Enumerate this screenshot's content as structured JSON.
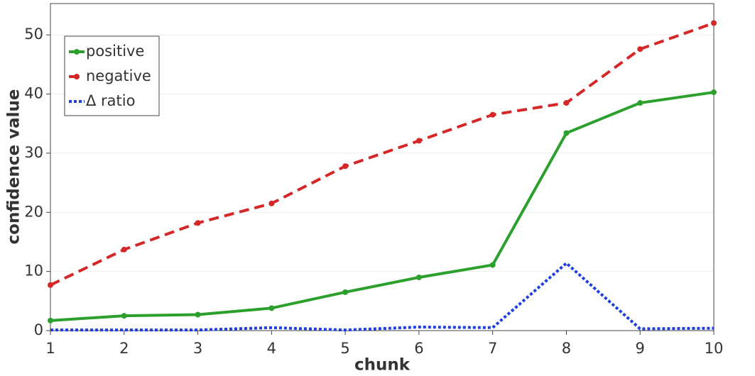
{
  "chart_data": {
    "type": "line",
    "x_label": "chunk",
    "y_label": "confidence value",
    "x": [
      1,
      2,
      3,
      4,
      5,
      6,
      7,
      8,
      9,
      10
    ],
    "xlim": [
      1,
      10
    ],
    "xticks": [
      1,
      2,
      3,
      4,
      5,
      6,
      7,
      8,
      9,
      10
    ],
    "ylim": [
      0,
      55.3
    ],
    "yticks": [
      0,
      10,
      20,
      30,
      40,
      50
    ],
    "grid": true,
    "legend": "upper-left",
    "series": [
      {
        "name": "positive",
        "color": "#2ca02c",
        "dash": "solid",
        "marker": true,
        "values": [
          1.7,
          2.5,
          2.7,
          3.8,
          6.5,
          9.0,
          11.1,
          33.4,
          38.5,
          40.3
        ]
      },
      {
        "name": "negative",
        "color": "#d62728",
        "dash": "dash",
        "marker": true,
        "values": [
          7.7,
          13.7,
          18.2,
          21.5,
          27.8,
          32.1,
          36.5,
          38.5,
          47.6,
          52.0
        ]
      },
      {
        "name": "Δ ratio",
        "color": "#1f3fe0",
        "dash": "dot",
        "marker": false,
        "values": [
          0.1,
          0.1,
          0.1,
          0.5,
          0.1,
          0.6,
          0.5,
          11.4,
          0.3,
          0.4
        ]
      }
    ]
  }
}
